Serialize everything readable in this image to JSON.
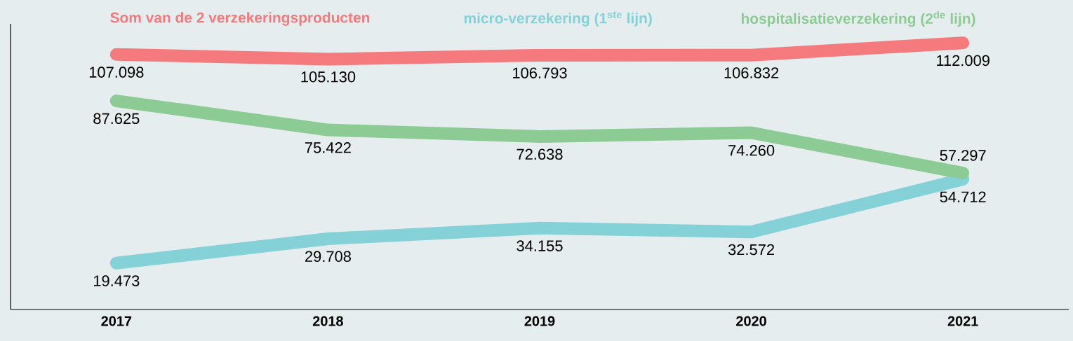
{
  "chart_data": {
    "type": "line",
    "categories": [
      "2017",
      "2018",
      "2019",
      "2020",
      "2021"
    ],
    "series": [
      {
        "name": "Som van de 2 verzekeringsproducten",
        "color": "#f47a7e",
        "values": [
          107.098,
          105.13,
          106.793,
          106.832,
          112.009
        ],
        "value_labels": [
          "107.098",
          "105.130",
          "106.793",
          "106.832",
          "112.009"
        ]
      },
      {
        "name": "micro-verzekering (1$^{ste}$ lijn)",
        "color": "#84d1d8",
        "values": [
          19.473,
          29.708,
          34.155,
          32.572,
          54.712
        ],
        "value_labels": [
          "19.473",
          "29.708",
          "34.155",
          "32.572",
          "54.712"
        ]
      },
      {
        "name": "hospitalisatieverzekering (2$^{de}$ lijn)",
        "color": "#8ccc94",
        "values": [
          87.625,
          75.422,
          72.638,
          74.26,
          57.297
        ],
        "value_labels": [
          "87.625",
          "75.422",
          "72.638",
          "74.260",
          "57.297"
        ]
      }
    ],
    "ylim": [
      0,
      120
    ],
    "tick_labels": "x",
    "legend": "top",
    "marker": "none",
    "line_style": "solid"
  }
}
